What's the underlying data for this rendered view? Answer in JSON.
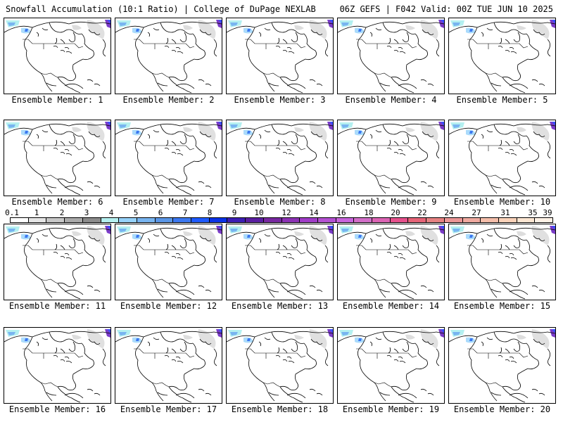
{
  "header": {
    "left": "Snowfall Accumulation (10:1 Ratio) | College of DuPage NEXLAB",
    "right": "06Z GEFS | F042 Valid: 00Z TUE JUN 10 2025"
  },
  "members": [
    {
      "label": "Ensemble Member: 1"
    },
    {
      "label": "Ensemble Member: 2"
    },
    {
      "label": "Ensemble Member: 3"
    },
    {
      "label": "Ensemble Member: 4"
    },
    {
      "label": "Ensemble Member: 5"
    },
    {
      "label": "Ensemble Member: 6"
    },
    {
      "label": "Ensemble Member: 7"
    },
    {
      "label": "Ensemble Member: 8"
    },
    {
      "label": "Ensemble Member: 9"
    },
    {
      "label": "Ensemble Member: 10"
    },
    {
      "label": "Ensemble Member: 11"
    },
    {
      "label": "Ensemble Member: 12"
    },
    {
      "label": "Ensemble Member: 13"
    },
    {
      "label": "Ensemble Member: 14"
    },
    {
      "label": "Ensemble Member: 15"
    },
    {
      "label": "Ensemble Member: 16"
    },
    {
      "label": "Ensemble Member: 17"
    },
    {
      "label": "Ensemble Member: 18"
    },
    {
      "label": "Ensemble Member: 19"
    },
    {
      "label": "Ensemble Member: 20"
    }
  ],
  "color_scale": {
    "labels": [
      "0.1",
      "1",
      "2",
      "3",
      "4",
      "5",
      "6",
      "7",
      "8",
      "9",
      "10",
      "12",
      "14",
      "16",
      "18",
      "20",
      "22",
      "24",
      "27",
      "31",
      "35",
      "39"
    ],
    "colors": [
      "#ffffff",
      "#e6e6e6",
      "#c8c8c8",
      "#aaaaaa",
      "#8c8c8c",
      "#b4f0f0",
      "#96d2fa",
      "#78b4f0",
      "#5a96e6",
      "#3c78f0",
      "#1e5aff",
      "#0a32e6",
      "#3c1eb4",
      "#5a1ea0",
      "#7828a0",
      "#8c32b4",
      "#a03cc8",
      "#b450d2",
      "#c864dc",
      "#d26ec8",
      "#dc64b4",
      "#e6508c",
      "#e66478",
      "#e68282",
      "#eb9696",
      "#f0aaa0",
      "#f5beaa",
      "#fad2b9",
      "#fce6d2",
      "#fff2e6"
    ]
  }
}
